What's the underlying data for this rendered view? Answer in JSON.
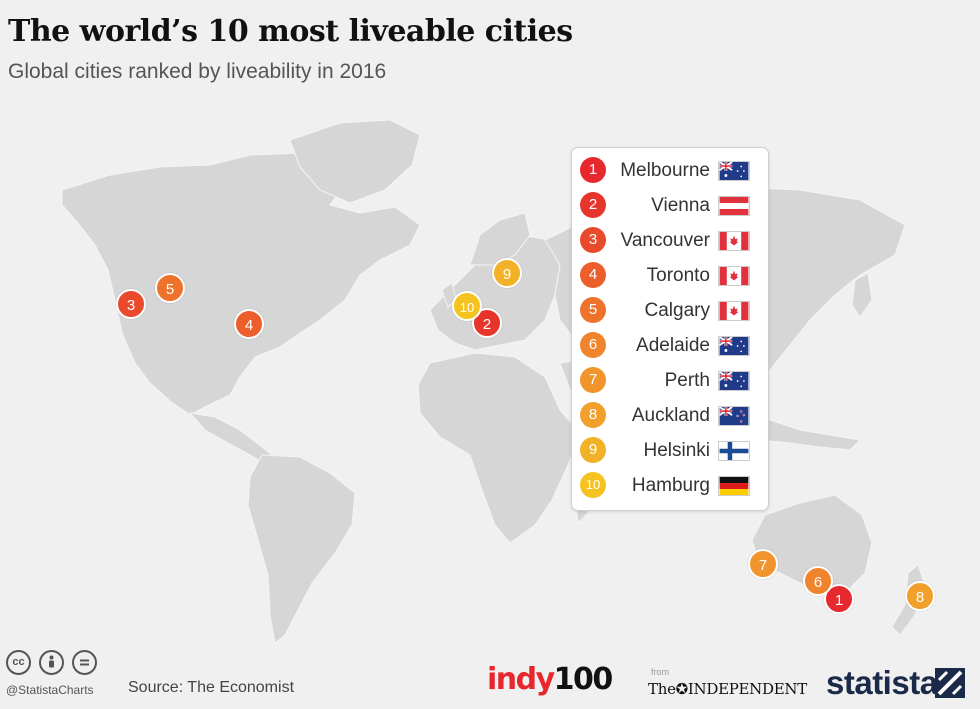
{
  "title": "The world’s 10 most liveable cities",
  "subtitle": "Global cities ranked by liveability in 2016",
  "colors": {
    "rank_1": "#e8282f",
    "rank_2": "#e8352c",
    "rank_3": "#ea4a2c",
    "rank_4": "#ec5f2c",
    "rank_5": "#ee722c",
    "rank_6": "#ef842c",
    "rank_7": "#f0942b",
    "rank_8": "#f1a12b",
    "rank_9": "#f2b126",
    "rank_10": "#f5c320",
    "land": "#d6d6d6",
    "ocean": "#f0f0f0"
  },
  "map_markers": [
    {
      "rank": "1",
      "city": "Melbourne"
    },
    {
      "rank": "2",
      "city": "Vienna"
    },
    {
      "rank": "3",
      "city": "Vancouver"
    },
    {
      "rank": "4",
      "city": "Toronto"
    },
    {
      "rank": "5",
      "city": "Calgary"
    },
    {
      "rank": "6",
      "city": "Adelaide"
    },
    {
      "rank": "7",
      "city": "Perth"
    },
    {
      "rank": "8",
      "city": "Auckland"
    },
    {
      "rank": "9",
      "city": "Helsinki"
    },
    {
      "rank": "10",
      "city": "Hamburg"
    }
  ],
  "legend": [
    {
      "rank": "1",
      "city": "Melbourne",
      "flag": "australia-flag-icon"
    },
    {
      "rank": "2",
      "city": "Vienna",
      "flag": "austria-flag-icon"
    },
    {
      "rank": "3",
      "city": "Vancouver",
      "flag": "canada-flag-icon"
    },
    {
      "rank": "4",
      "city": "Toronto",
      "flag": "canada-flag-icon"
    },
    {
      "rank": "5",
      "city": "Calgary",
      "flag": "canada-flag-icon"
    },
    {
      "rank": "6",
      "city": "Adelaide",
      "flag": "australia-flag-icon"
    },
    {
      "rank": "7",
      "city": "Perth",
      "flag": "australia-flag-icon"
    },
    {
      "rank": "8",
      "city": "Auckland",
      "flag": "new-zealand-flag-icon"
    },
    {
      "rank": "9",
      "city": "Helsinki",
      "flag": "finland-flag-icon"
    },
    {
      "rank": "10",
      "city": "Hamburg",
      "flag": "germany-flag-icon"
    }
  ],
  "footer": {
    "handle": "@StatistaCharts",
    "source": "Source: The Economist",
    "indy_part1": "indy",
    "indy_part2": "100",
    "from": "from",
    "independent": "The✪INDEPENDENT",
    "statista": "statista"
  }
}
